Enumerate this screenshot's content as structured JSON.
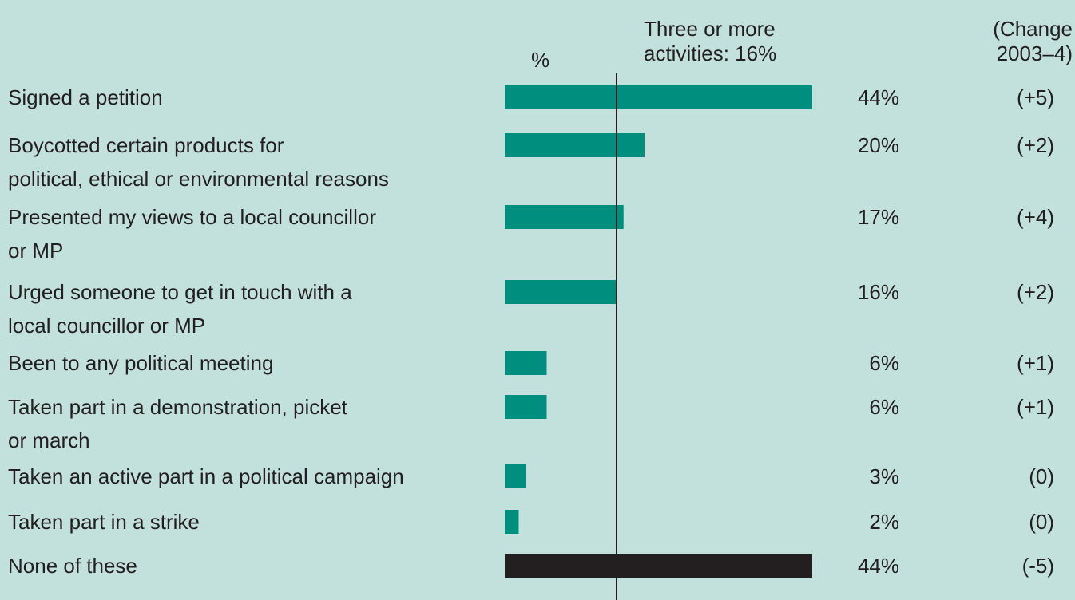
{
  "chart_data": {
    "type": "bar",
    "orientation": "horizontal",
    "percent_symbol": "%",
    "reference_line": {
      "value": 16,
      "label_lines": [
        "Three or more",
        "activities: 16%"
      ]
    },
    "change_header_lines": [
      "(Change",
      "2003–4)"
    ],
    "categories": [
      [
        "Signed a petition"
      ],
      [
        "Boycotted certain products for",
        "political, ethical or environmental reasons"
      ],
      [
        "Presented my views to a local councillor",
        "or MP"
      ],
      [
        "Urged someone to get in touch with a",
        "local councillor or MP"
      ],
      [
        "Been to any political meeting"
      ],
      [
        "Taken part in a demonstration, picket",
        "or march"
      ],
      [
        "Taken an active part in a political campaign"
      ],
      [
        "Taken part in a strike"
      ],
      [
        "None of these"
      ]
    ],
    "values": [
      44,
      20,
      17,
      16,
      6,
      6,
      3,
      2,
      44
    ],
    "value_labels": [
      "44%",
      "20%",
      "17%",
      "16%",
      "6%",
      "6%",
      "3%",
      "2%",
      "44%"
    ],
    "changes": [
      "(+5)",
      "(+2)",
      "(+4)",
      "(+2)",
      "(+1)",
      "(+1)",
      "(0)",
      "(0)",
      "(-5)"
    ],
    "bar_colors": [
      "#008f7e",
      "#008f7e",
      "#008f7e",
      "#008f7e",
      "#008f7e",
      "#008f7e",
      "#008f7e",
      "#008f7e",
      "#231f20"
    ],
    "xlim": [
      0,
      44
    ],
    "grid": false
  },
  "colors": {
    "background": "#c2e0dc",
    "bar": "#008f7e",
    "none_bar": "#231f20",
    "text": "#231f20"
  }
}
